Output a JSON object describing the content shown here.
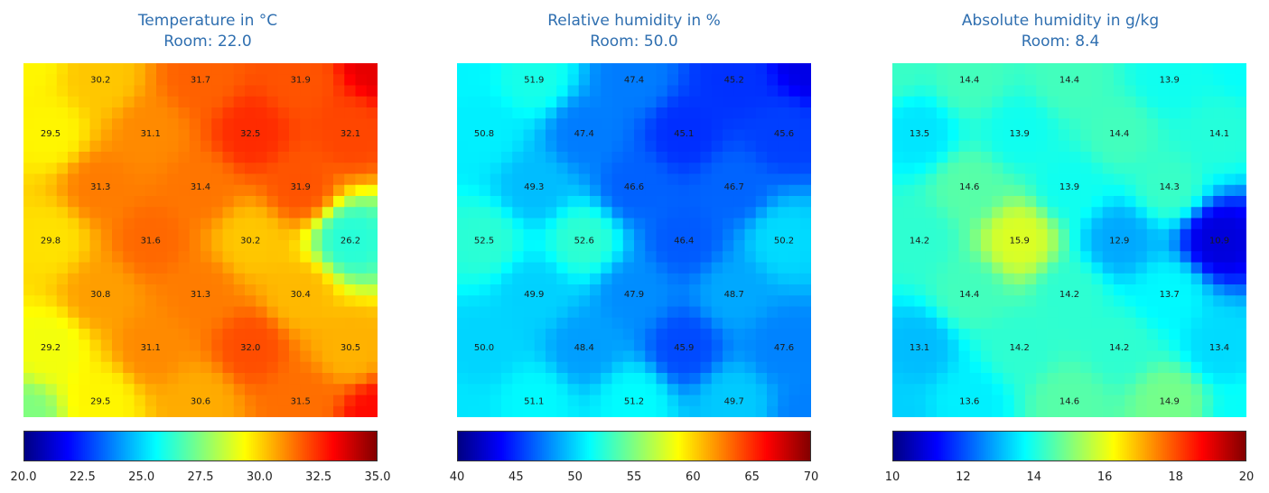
{
  "chart_data": [
    {
      "type": "heatmap",
      "title": "Temperature in °C",
      "subtitle": "Room: 22.0",
      "colormap": "jet",
      "clim": [
        20.0,
        35.0
      ],
      "colorbar_ticks": [
        "20.0",
        "22.5",
        "25.0",
        "27.5",
        "30.0",
        "32.5",
        "35.0"
      ],
      "corner_values": [
        29.5,
        33.5,
        27.5,
        33.0
      ],
      "points": [
        {
          "row": 0,
          "col": 1,
          "value": "30.2"
        },
        {
          "row": 0,
          "col": 3,
          "value": "31.7"
        },
        {
          "row": 0,
          "col": 5,
          "value": "31.9"
        },
        {
          "row": 1,
          "col": 0,
          "value": "29.5"
        },
        {
          "row": 1,
          "col": 2,
          "value": "31.1"
        },
        {
          "row": 1,
          "col": 4,
          "value": "32.5"
        },
        {
          "row": 1,
          "col": 6,
          "value": "32.1"
        },
        {
          "row": 2,
          "col": 1,
          "value": "31.3"
        },
        {
          "row": 2,
          "col": 3,
          "value": "31.4"
        },
        {
          "row": 2,
          "col": 5,
          "value": "31.9"
        },
        {
          "row": 3,
          "col": 0,
          "value": "29.8"
        },
        {
          "row": 3,
          "col": 2,
          "value": "31.6"
        },
        {
          "row": 3,
          "col": 4,
          "value": "30.2"
        },
        {
          "row": 3,
          "col": 6,
          "value": "26.2"
        },
        {
          "row": 4,
          "col": 1,
          "value": "30.8"
        },
        {
          "row": 4,
          "col": 3,
          "value": "31.3"
        },
        {
          "row": 4,
          "col": 5,
          "value": "30.4"
        },
        {
          "row": 5,
          "col": 0,
          "value": "29.2"
        },
        {
          "row": 5,
          "col": 2,
          "value": "31.1"
        },
        {
          "row": 5,
          "col": 4,
          "value": "32.0"
        },
        {
          "row": 5,
          "col": 6,
          "value": "30.5"
        },
        {
          "row": 6,
          "col": 1,
          "value": "29.5"
        },
        {
          "row": 6,
          "col": 3,
          "value": "30.6"
        },
        {
          "row": 6,
          "col": 5,
          "value": "31.5"
        }
      ]
    },
    {
      "type": "heatmap",
      "title": "Relative humidity in %",
      "subtitle": "Room: 50.0",
      "colormap": "jet",
      "clim": [
        40,
        70
      ],
      "colorbar_ticks": [
        "40",
        "45",
        "50",
        "55",
        "60",
        "65",
        "70"
      ],
      "corner_values": [
        51.0,
        43.0,
        50.5,
        47.5
      ],
      "points": [
        {
          "row": 0,
          "col": 1,
          "value": "51.9"
        },
        {
          "row": 0,
          "col": 3,
          "value": "47.4"
        },
        {
          "row": 0,
          "col": 5,
          "value": "45.2"
        },
        {
          "row": 1,
          "col": 0,
          "value": "50.8"
        },
        {
          "row": 1,
          "col": 2,
          "value": "47.4"
        },
        {
          "row": 1,
          "col": 4,
          "value": "45.1"
        },
        {
          "row": 1,
          "col": 6,
          "value": "45.6"
        },
        {
          "row": 2,
          "col": 1,
          "value": "49.3"
        },
        {
          "row": 2,
          "col": 3,
          "value": "46.6"
        },
        {
          "row": 2,
          "col": 5,
          "value": "46.7"
        },
        {
          "row": 3,
          "col": 0,
          "value": "52.5"
        },
        {
          "row": 3,
          "col": 2,
          "value": "52.6"
        },
        {
          "row": 3,
          "col": 4,
          "value": "46.4"
        },
        {
          "row": 3,
          "col": 6,
          "value": "50.2"
        },
        {
          "row": 4,
          "col": 1,
          "value": "49.9"
        },
        {
          "row": 4,
          "col": 3,
          "value": "47.9"
        },
        {
          "row": 4,
          "col": 5,
          "value": "48.7"
        },
        {
          "row": 5,
          "col": 0,
          "value": "50.0"
        },
        {
          "row": 5,
          "col": 2,
          "value": "48.4"
        },
        {
          "row": 5,
          "col": 4,
          "value": "45.9"
        },
        {
          "row": 5,
          "col": 6,
          "value": "47.6"
        },
        {
          "row": 6,
          "col": 1,
          "value": "51.1"
        },
        {
          "row": 6,
          "col": 3,
          "value": "51.2"
        },
        {
          "row": 6,
          "col": 5,
          "value": "49.7"
        }
      ]
    },
    {
      "type": "heatmap",
      "title": "Absolute humidity in g/kg",
      "subtitle": "Room: 8.4",
      "colormap": "jet",
      "clim": [
        10,
        20
      ],
      "colorbar_ticks": [
        "10",
        "12",
        "14",
        "16",
        "18",
        "20"
      ],
      "corner_values": [
        14.3,
        13.8,
        13.3,
        13.8
      ],
      "points": [
        {
          "row": 0,
          "col": 1,
          "value": "14.4"
        },
        {
          "row": 0,
          "col": 3,
          "value": "14.4"
        },
        {
          "row": 0,
          "col": 5,
          "value": "13.9"
        },
        {
          "row": 1,
          "col": 0,
          "value": "13.5"
        },
        {
          "row": 1,
          "col": 2,
          "value": "13.9"
        },
        {
          "row": 1,
          "col": 4,
          "value": "14.4"
        },
        {
          "row": 1,
          "col": 6,
          "value": "14.1"
        },
        {
          "row": 2,
          "col": 1,
          "value": "14.6"
        },
        {
          "row": 2,
          "col": 3,
          "value": "13.9"
        },
        {
          "row": 2,
          "col": 5,
          "value": "14.3"
        },
        {
          "row": 3,
          "col": 0,
          "value": "14.2"
        },
        {
          "row": 3,
          "col": 2,
          "value": "15.9"
        },
        {
          "row": 3,
          "col": 4,
          "value": "12.9"
        },
        {
          "row": 3,
          "col": 6,
          "value": "10.9"
        },
        {
          "row": 4,
          "col": 1,
          "value": "14.4"
        },
        {
          "row": 4,
          "col": 3,
          "value": "14.2"
        },
        {
          "row": 4,
          "col": 5,
          "value": "13.7"
        },
        {
          "row": 5,
          "col": 0,
          "value": "13.1"
        },
        {
          "row": 5,
          "col": 2,
          "value": "14.2"
        },
        {
          "row": 5,
          "col": 4,
          "value": "14.2"
        },
        {
          "row": 5,
          "col": 6,
          "value": "13.4"
        },
        {
          "row": 6,
          "col": 1,
          "value": "13.6"
        },
        {
          "row": 6,
          "col": 3,
          "value": "14.6"
        },
        {
          "row": 6,
          "col": 5,
          "value": "14.9"
        }
      ]
    }
  ]
}
